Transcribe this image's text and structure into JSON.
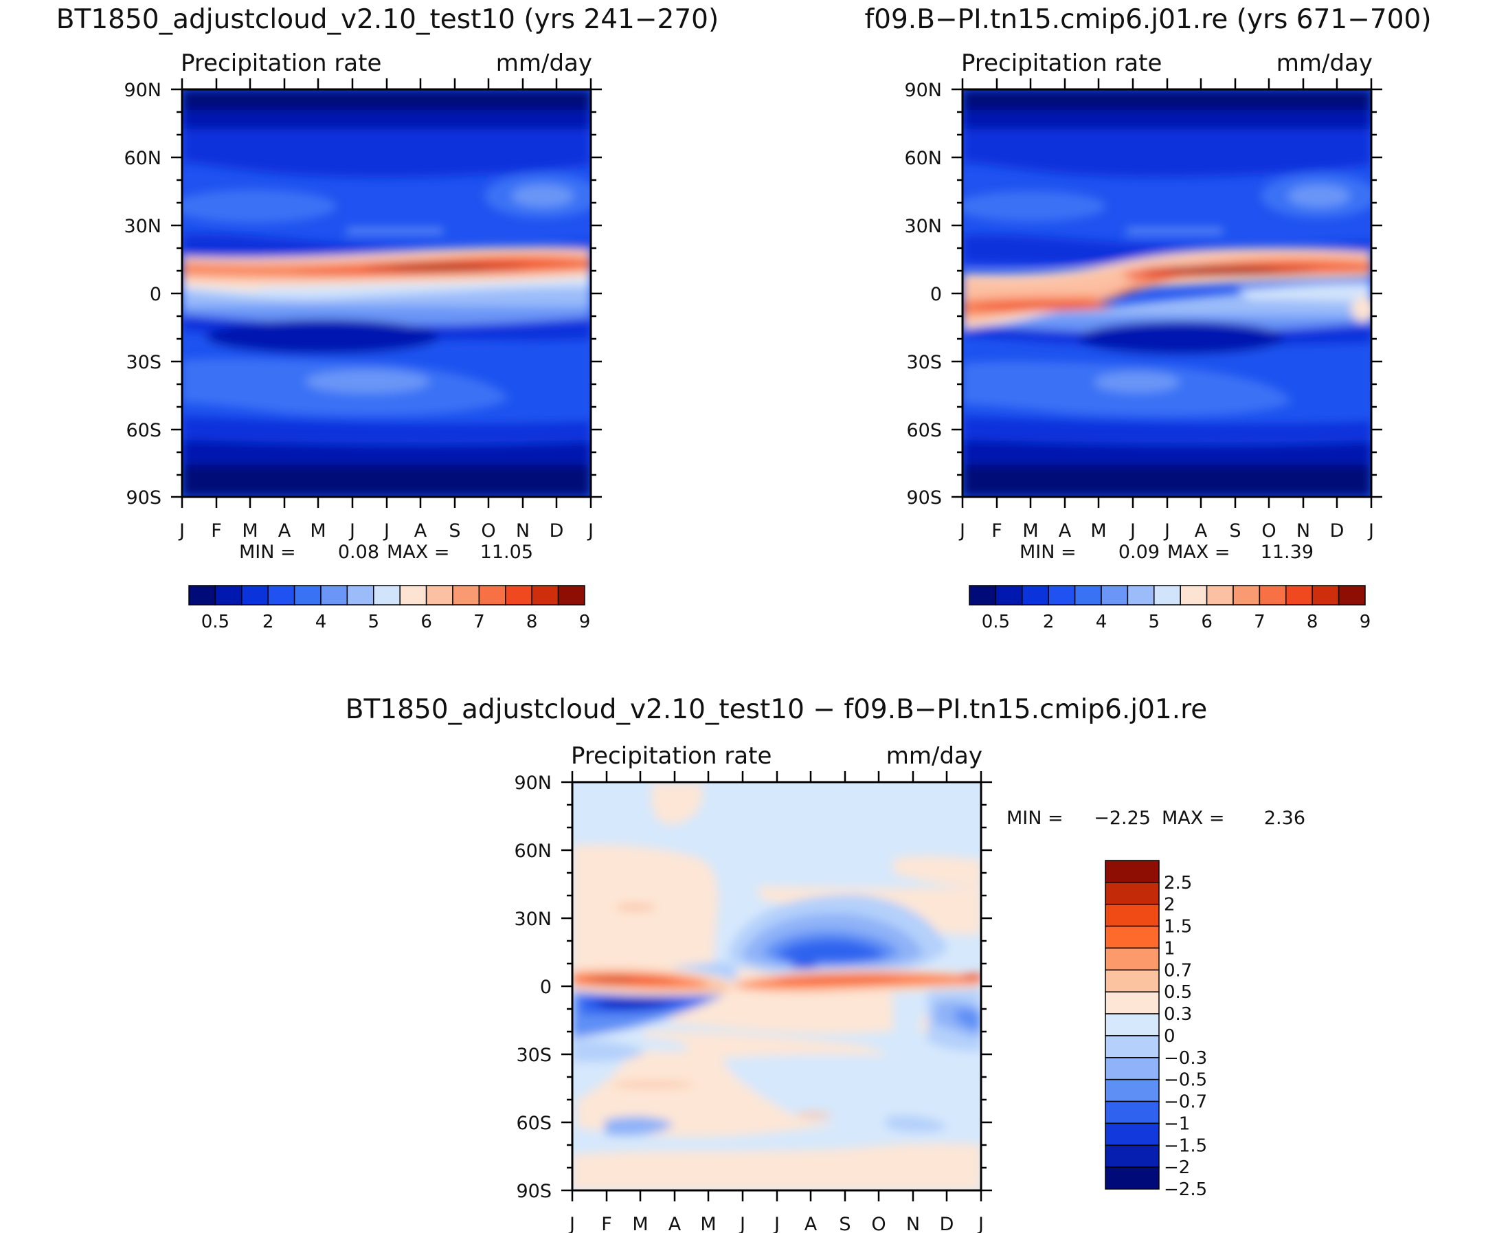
{
  "panels": [
    {
      "id": "control",
      "title": "BT1850_adjustcloud_v2.10_test10 (yrs 241−270)",
      "variable": "Precipitation rate",
      "units": "mm/day",
      "stats_min_label": "MIN =",
      "stats_min": "0.08",
      "stats_max_label": "MAX =",
      "stats_max": "11.05"
    },
    {
      "id": "case",
      "title": "f09.B−PI.tn15.cmip6.j01.re (yrs 671−700)",
      "variable": "Precipitation rate",
      "units": "mm/day",
      "stats_min_label": "MIN =",
      "stats_min": "0.09",
      "stats_max_label": "MAX =",
      "stats_max": "11.39"
    },
    {
      "id": "diff",
      "title": "BT1850_adjustcloud_v2.10_test10 − f09.B−PI.tn15.cmip6.j01.re",
      "variable": "Precipitation rate",
      "units": "mm/day",
      "stats_min_label": "MIN =",
      "stats_min": "−2.25",
      "stats_max_label": "MAX =",
      "stats_max": "2.36"
    }
  ],
  "colorbars": {
    "abs": {
      "colors": [
        "#000a78",
        "#0018b0",
        "#0a33dc",
        "#1f52f0",
        "#3a72f5",
        "#6b96f7",
        "#9bbcf9",
        "#d2e4fb",
        "#fde3d2",
        "#fcc0a3",
        "#fa9a72",
        "#f77145",
        "#f0491f",
        "#cf2e0c",
        "#8f0e04"
      ],
      "labels": [
        "0.5",
        "2",
        "4",
        "5",
        "6",
        "7",
        "8",
        "9"
      ]
    },
    "diff": {
      "colors": [
        "#8f0e04",
        "#c22a08",
        "#f04a15",
        "#fe6a2c",
        "#fd9a6c",
        "#fcc3a1",
        "#fde6d6",
        "#d6e8fc",
        "#b4d0fb",
        "#8fb2f8",
        "#5e8ff5",
        "#2f63ef",
        "#1239dc",
        "#061fb0",
        "#000a78"
      ],
      "labels": [
        "2.5",
        "2",
        "1.5",
        "1",
        "0.7",
        "0.5",
        "0.3",
        "0",
        "−0.3",
        "−0.5",
        "−0.7",
        "−1",
        "−1.5",
        "−2",
        "−2.5"
      ]
    }
  },
  "chart_data": [
    {
      "type": "heatmap",
      "title": "BT1850_adjustcloud_v2.10_test10 (yrs 241−270)",
      "subtitle": "Precipitation rate (mm/day)",
      "x": [
        "J",
        "F",
        "M",
        "A",
        "M",
        "J",
        "J",
        "A",
        "S",
        "O",
        "N",
        "D",
        "J"
      ],
      "y": [
        "90N",
        "60N",
        "30N",
        "0",
        "30S",
        "60S",
        "90S"
      ],
      "ylim": [
        -90,
        90
      ],
      "itcz_peak_lat_by_month": [
        6,
        5,
        4,
        4,
        5,
        7,
        8,
        9,
        9,
        8,
        8,
        7,
        6
      ],
      "itcz_peak_value_by_month": [
        8.5,
        8.5,
        8.5,
        8.5,
        9,
        9.5,
        10,
        10.5,
        10.5,
        10.5,
        10,
        9.5,
        8.5
      ],
      "min": 0.08,
      "max": 11.05,
      "levels": [
        0.5,
        2,
        4,
        5,
        6,
        7,
        8,
        9
      ]
    },
    {
      "type": "heatmap",
      "title": "f09.B−PI.tn15.cmip6.j01.re (yrs 671−700)",
      "subtitle": "Precipitation rate (mm/day)",
      "x": [
        "J",
        "F",
        "M",
        "A",
        "M",
        "J",
        "J",
        "A",
        "S",
        "O",
        "N",
        "D",
        "J"
      ],
      "y": [
        "90N",
        "60N",
        "30N",
        "0",
        "30S",
        "60S",
        "90S"
      ],
      "ylim": [
        -90,
        90
      ],
      "itcz_peak_lat_by_month": [
        6,
        -5,
        -5,
        -4,
        5,
        8,
        9,
        9,
        9,
        8,
        8,
        7,
        6
      ],
      "itcz_peak_value_by_month": [
        8,
        7.5,
        7.5,
        7,
        9,
        10,
        10.5,
        11,
        11,
        10.5,
        10,
        9,
        8
      ],
      "min": 0.09,
      "max": 11.39,
      "levels": [
        0.5,
        2,
        4,
        5,
        6,
        7,
        8,
        9
      ]
    },
    {
      "type": "heatmap",
      "title": "BT1850_adjustcloud_v2.10_test10 − f09.B−PI.tn15.cmip6.j01.re",
      "subtitle": "Precipitation rate (mm/day)",
      "x": [
        "J",
        "F",
        "M",
        "A",
        "M",
        "J",
        "J",
        "A",
        "S",
        "O",
        "N",
        "D",
        "J"
      ],
      "y": [
        "90N",
        "60N",
        "30N",
        "0",
        "30S",
        "60S",
        "90S"
      ],
      "ylim": [
        -90,
        90
      ],
      "nh_tropics_anomaly_by_month": [
        2.3,
        2.3,
        2.2,
        1.8,
        0.5,
        1.8,
        2.0,
        2.0,
        2.0,
        1.8,
        1.8,
        1.8,
        2.3
      ],
      "sh_tropics_anomaly_by_month": [
        -1.5,
        -2.0,
        -2.25,
        -1.8,
        -0.8,
        0.3,
        0.3,
        0.3,
        0.3,
        0.2,
        -0.3,
        -1.2,
        -1.5
      ],
      "min": -2.25,
      "max": 2.36,
      "levels": [
        -2.5,
        -2,
        -1.5,
        -1,
        -0.7,
        -0.5,
        -0.3,
        0,
        0.3,
        0.5,
        0.7,
        1,
        1.5,
        2,
        2.5
      ]
    }
  ]
}
